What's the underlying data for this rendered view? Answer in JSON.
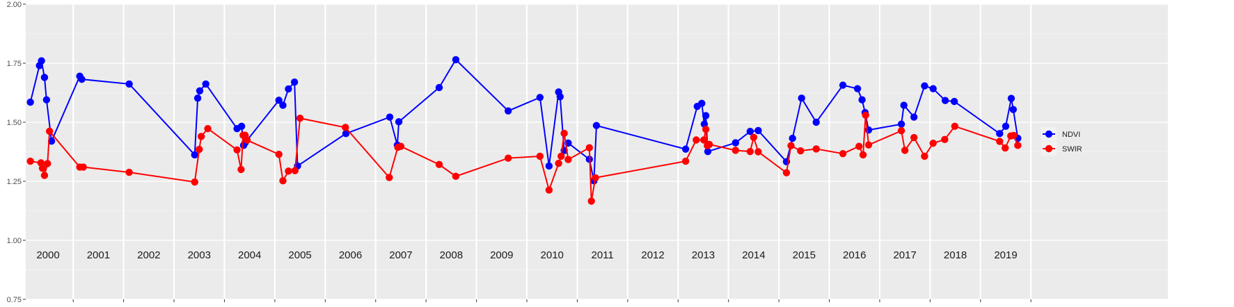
{
  "chart_data": {
    "type": "line",
    "title": "",
    "xlabel": "",
    "ylabel": "",
    "xlim": [
      2000.0,
      2020.0
    ],
    "ylim": [
      0.75,
      2.0
    ],
    "yticks": [
      "0.75",
      "1.00",
      "1.25",
      "1.50",
      "1.75",
      "2.00"
    ],
    "ytick_values": [
      0.75,
      1.0,
      1.25,
      1.5,
      1.75,
      2.0
    ],
    "year_labels": [
      "2000",
      "2001",
      "2002",
      "2003",
      "2004",
      "2005",
      "2006",
      "2007",
      "2008",
      "2009",
      "2010",
      "2011",
      "2012",
      "2013",
      "2014",
      "2015",
      "2016",
      "2017",
      "2018",
      "2019"
    ],
    "grid": true,
    "legend_position": "right",
    "series": [
      {
        "name": "NDVI",
        "color": "#0000ff",
        "x": [
          2000.15,
          2000.33,
          2000.37,
          2000.43,
          2000.47,
          2000.57,
          2001.13,
          2001.17,
          2002.11,
          2003.41,
          2003.47,
          2003.51,
          2003.63,
          2004.25,
          2004.34,
          2004.38,
          2004.41,
          2005.08,
          2005.16,
          2005.27,
          2005.39,
          2005.45,
          2006.41,
          2007.28,
          2007.43,
          2007.46,
          2008.26,
          2008.59,
          2009.63,
          2010.26,
          2010.44,
          2010.63,
          2010.66,
          2010.74,
          2010.82,
          2011.24,
          2011.33,
          2011.38,
          2013.15,
          2013.38,
          2013.47,
          2013.52,
          2013.55,
          2013.59,
          2014.14,
          2014.43,
          2014.59,
          2015.15,
          2015.27,
          2015.45,
          2015.74,
          2016.27,
          2016.56,
          2016.65,
          2016.71,
          2016.78,
          2017.43,
          2017.48,
          2017.68,
          2017.89,
          2018.06,
          2018.3,
          2018.48,
          2019.38,
          2019.5,
          2019.61,
          2019.65,
          2019.74
        ],
        "y": [
          1.585,
          1.74,
          1.76,
          1.69,
          1.595,
          1.42,
          1.695,
          1.682,
          1.662,
          1.362,
          1.602,
          1.633,
          1.662,
          1.473,
          1.483,
          1.402,
          1.413,
          1.593,
          1.572,
          1.641,
          1.67,
          1.315,
          1.452,
          1.522,
          1.403,
          1.502,
          1.647,
          1.765,
          1.548,
          1.605,
          1.315,
          1.628,
          1.608,
          1.38,
          1.412,
          1.343,
          1.252,
          1.486,
          1.386,
          1.567,
          1.58,
          1.492,
          1.528,
          1.376,
          1.413,
          1.461,
          1.465,
          1.333,
          1.432,
          1.602,
          1.5,
          1.657,
          1.642,
          1.595,
          1.541,
          1.467,
          1.492,
          1.572,
          1.522,
          1.654,
          1.642,
          1.592,
          1.588,
          1.452,
          1.483,
          1.601,
          1.554,
          1.432
        ]
      },
      {
        "name": "SWIR",
        "color": "#ff0000",
        "x": [
          2000.15,
          2000.36,
          2000.39,
          2000.43,
          2000.49,
          2000.53,
          2001.13,
          2001.2,
          2002.11,
          2003.41,
          2003.5,
          2003.54,
          2003.67,
          2004.25,
          2004.33,
          2004.37,
          2004.41,
          2004.45,
          2005.08,
          2005.16,
          2005.27,
          2005.4,
          2005.5,
          2006.4,
          2007.27,
          2007.44,
          2007.5,
          2008.26,
          2008.59,
          2009.63,
          2010.26,
          2010.44,
          2010.63,
          2010.68,
          2010.74,
          2010.82,
          2011.24,
          2011.28,
          2011.36,
          2013.15,
          2013.36,
          2013.51,
          2013.55,
          2013.58,
          2013.62,
          2014.14,
          2014.43,
          2014.5,
          2014.59,
          2015.15,
          2015.24,
          2015.43,
          2015.74,
          2016.27,
          2016.59,
          2016.67,
          2016.72,
          2016.78,
          2017.43,
          2017.5,
          2017.68,
          2017.89,
          2018.06,
          2018.29,
          2018.49,
          2019.38,
          2019.49,
          2019.6,
          2019.66,
          2019.74
        ],
        "y": [
          1.335,
          1.328,
          1.305,
          1.275,
          1.325,
          1.462,
          1.31,
          1.31,
          1.288,
          1.247,
          1.385,
          1.44,
          1.473,
          1.383,
          1.3,
          1.445,
          1.445,
          1.424,
          1.364,
          1.252,
          1.293,
          1.295,
          1.517,
          1.478,
          1.266,
          1.394,
          1.398,
          1.321,
          1.271,
          1.348,
          1.356,
          1.213,
          1.326,
          1.356,
          1.453,
          1.342,
          1.392,
          1.166,
          1.265,
          1.335,
          1.425,
          1.425,
          1.47,
          1.401,
          1.406,
          1.381,
          1.376,
          1.436,
          1.375,
          1.286,
          1.401,
          1.379,
          1.387,
          1.367,
          1.398,
          1.362,
          1.53,
          1.404,
          1.464,
          1.381,
          1.435,
          1.356,
          1.411,
          1.427,
          1.483,
          1.419,
          1.391,
          1.442,
          1.444,
          1.402
        ]
      }
    ]
  }
}
